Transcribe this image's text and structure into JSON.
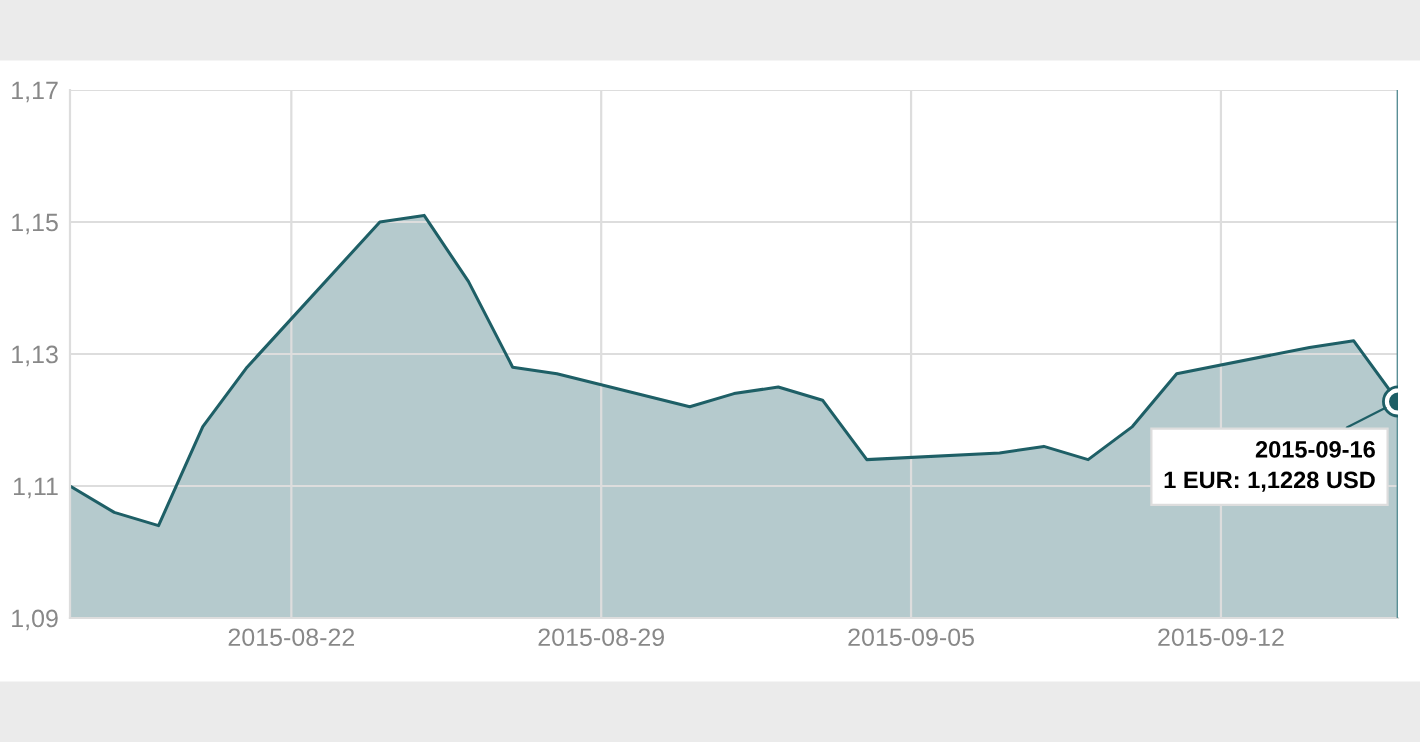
{
  "chart_data": {
    "type": "area",
    "x": [
      "2015-08-17",
      "2015-08-18",
      "2015-08-19",
      "2015-08-20",
      "2015-08-21",
      "2015-08-24",
      "2015-08-25",
      "2015-08-26",
      "2015-08-27",
      "2015-08-28",
      "2015-08-31",
      "2015-09-01",
      "2015-09-02",
      "2015-09-03",
      "2015-09-04",
      "2015-09-07",
      "2015-09-08",
      "2015-09-09",
      "2015-09-10",
      "2015-09-11",
      "2015-09-14",
      "2015-09-15",
      "2015-09-16"
    ],
    "series": [
      {
        "color": "#1e5f66",
        "values": [
          1.11,
          1.106,
          1.104,
          1.119,
          1.128,
          1.15,
          1.151,
          1.141,
          1.128,
          1.127,
          1.122,
          1.124,
          1.125,
          1.123,
          1.114,
          1.115,
          1.116,
          1.114,
          1.119,
          1.127,
          1.131,
          1.132,
          1.1228
        ]
      }
    ],
    "xlim": [
      "2015-08-17",
      "2015-09-16"
    ],
    "xticks": [
      "2015-08-22",
      "2015-08-29",
      "2015-09-05",
      "2015-09-12"
    ],
    "ylim": [
      1.09,
      1.17
    ],
    "yticks": [
      {
        "value": 1.09,
        "label": "1,09"
      },
      {
        "value": 1.11,
        "label": "1,11"
      },
      {
        "value": 1.13,
        "label": "1,13"
      },
      {
        "value": 1.15,
        "label": "1,15"
      },
      {
        "value": 1.17,
        "label": "1,17"
      }
    ],
    "grid": true,
    "ref_lines": [
      {
        "axis": "x",
        "value": "2015-09-16",
        "color": "#5a8f96"
      }
    ],
    "annotations": [
      {
        "text": "2015-09-16\n1 EUR: 1,1228 USD",
        "x": "2015-09-16",
        "y": 1.1228
      }
    ]
  }
}
